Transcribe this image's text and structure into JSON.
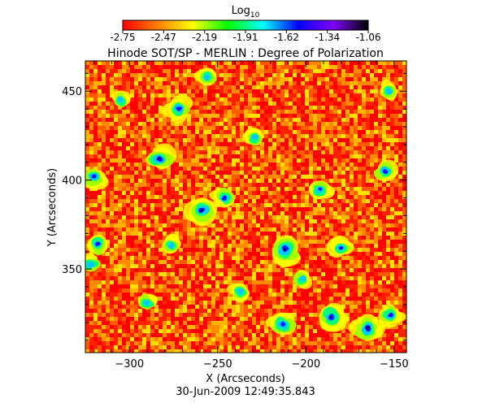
{
  "chart_data": {
    "type": "heatmap",
    "title": "Hinode SOT/SP - MERLIN : Degree of Polarization",
    "subtitle": "30-Jun-2009 12:49:35.843",
    "xlabel": "X (Arcseconds)",
    "ylabel": "Y (Arcseconds)",
    "xlim": [
      -325,
      -143
    ],
    "ylim": [
      303,
      467
    ],
    "xticks": [
      -300,
      -250,
      -200,
      -150
    ],
    "yticks": [
      350,
      400,
      450
    ],
    "grid": false,
    "colorbar": {
      "title": "Log",
      "title_subscript": "10",
      "position": "top",
      "range": [
        -2.75,
        -1.06
      ],
      "ticks": [
        "-2.75",
        "-2.47",
        "-2.19",
        "-1.91",
        "-1.62",
        "-1.34",
        "-1.06"
      ],
      "colormap": [
        "#ff0000",
        "#ff7f00",
        "#ffff00",
        "#00ff00",
        "#00ffff",
        "#0000ff",
        "#7f00ff",
        "#000000"
      ]
    },
    "features": [
      {
        "x": -212,
        "y": 361,
        "strength": 1.0
      },
      {
        "x": -259,
        "y": 383,
        "strength": 0.9
      },
      {
        "x": -283,
        "y": 412,
        "strength": 0.85
      },
      {
        "x": -186,
        "y": 323,
        "strength": 0.9
      },
      {
        "x": -165,
        "y": 317,
        "strength": 0.9
      },
      {
        "x": -213,
        "y": 319,
        "strength": 0.7
      },
      {
        "x": -320,
        "y": 402,
        "strength": 0.7
      },
      {
        "x": -272,
        "y": 440,
        "strength": 0.65
      },
      {
        "x": -246,
        "y": 390,
        "strength": 0.6
      },
      {
        "x": -192,
        "y": 395,
        "strength": 0.6
      },
      {
        "x": -318,
        "y": 364,
        "strength": 0.6
      },
      {
        "x": -155,
        "y": 405,
        "strength": 0.6
      },
      {
        "x": -180,
        "y": 362,
        "strength": 0.55
      },
      {
        "x": -237,
        "y": 337,
        "strength": 0.5
      },
      {
        "x": -202,
        "y": 344,
        "strength": 0.5
      },
      {
        "x": -256,
        "y": 458,
        "strength": 0.45
      },
      {
        "x": -152,
        "y": 324,
        "strength": 0.6
      },
      {
        "x": -290,
        "y": 331,
        "strength": 0.45
      },
      {
        "x": -305,
        "y": 445,
        "strength": 0.4
      },
      {
        "x": -229,
        "y": 424,
        "strength": 0.4
      },
      {
        "x": -153,
        "y": 450,
        "strength": 0.4
      },
      {
        "x": -276,
        "y": 363,
        "strength": 0.4
      },
      {
        "x": -322,
        "y": 353,
        "strength": 0.45
      }
    ]
  }
}
